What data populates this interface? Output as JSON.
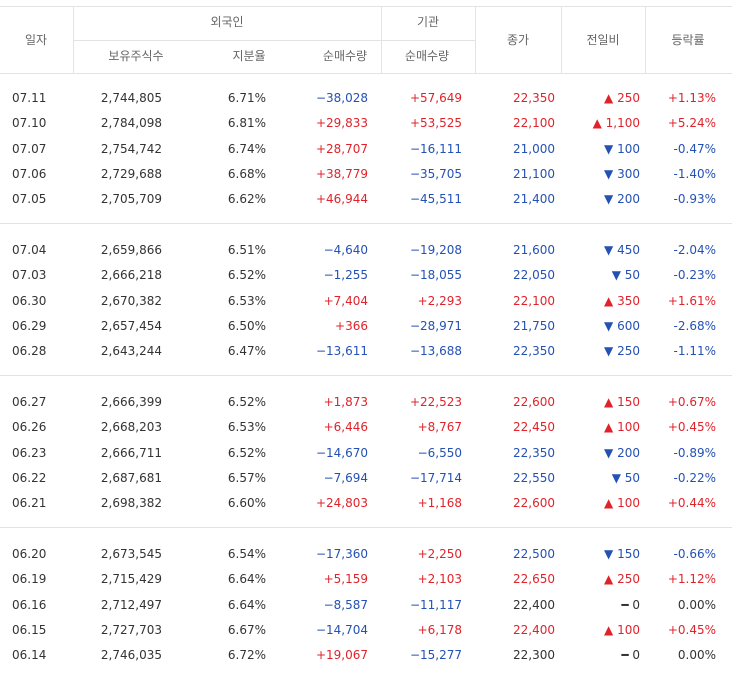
{
  "header": {
    "date": "일자",
    "foreign": "외국인",
    "institution": "기관",
    "close": "종가",
    "change": "전일비",
    "rate": "등락률",
    "holdings": "보유주식수",
    "share": "지분율",
    "foreign_net": "순매수량",
    "inst_net": "순매수량"
  },
  "groups": [
    [
      [
        "07.11",
        "2,744,805",
        "6.71%",
        "−38,028",
        "+57,649",
        "22,350",
        "▲ 250",
        "+1.13%"
      ],
      [
        "07.10",
        "2,784,098",
        "6.81%",
        "+29,833",
        "+53,525",
        "22,100",
        "▲ 1,100",
        "+5.24%"
      ],
      [
        "07.07",
        "2,754,742",
        "6.74%",
        "+28,707",
        "−16,111",
        "21,000",
        "▼ 100",
        "-0.47%"
      ],
      [
        "07.06",
        "2,729,688",
        "6.68%",
        "+38,779",
        "−35,705",
        "21,100",
        "▼ 300",
        "-1.40%"
      ],
      [
        "07.05",
        "2,705,709",
        "6.62%",
        "+46,944",
        "−45,511",
        "21,400",
        "▼ 200",
        "-0.93%"
      ]
    ],
    [
      [
        "07.04",
        "2,659,866",
        "6.51%",
        "−4,640",
        "−19,208",
        "21,600",
        "▼ 450",
        "-2.04%"
      ],
      [
        "07.03",
        "2,666,218",
        "6.52%",
        "−1,255",
        "−18,055",
        "22,050",
        "▼ 50",
        "-0.23%"
      ],
      [
        "06.30",
        "2,670,382",
        "6.53%",
        "+7,404",
        "+2,293",
        "22,100",
        "▲ 350",
        "+1.61%"
      ],
      [
        "06.29",
        "2,657,454",
        "6.50%",
        "+366",
        "−28,971",
        "21,750",
        "▼ 600",
        "-2.68%"
      ],
      [
        "06.28",
        "2,643,244",
        "6.47%",
        "−13,611",
        "−13,688",
        "22,350",
        "▼ 250",
        "-1.11%"
      ]
    ],
    [
      [
        "06.27",
        "2,666,399",
        "6.52%",
        "+1,873",
        "+22,523",
        "22,600",
        "▲ 150",
        "+0.67%"
      ],
      [
        "06.26",
        "2,668,203",
        "6.53%",
        "+6,446",
        "+8,767",
        "22,450",
        "▲ 100",
        "+0.45%"
      ],
      [
        "06.23",
        "2,666,711",
        "6.52%",
        "−14,670",
        "−6,550",
        "22,350",
        "▼ 200",
        "-0.89%"
      ],
      [
        "06.22",
        "2,687,681",
        "6.57%",
        "−7,694",
        "−17,714",
        "22,550",
        "▼ 50",
        "-0.22%"
      ],
      [
        "06.21",
        "2,698,382",
        "6.60%",
        "+24,803",
        "+1,168",
        "22,600",
        "▲ 100",
        "+0.44%"
      ]
    ],
    [
      [
        "06.20",
        "2,673,545",
        "6.54%",
        "−17,360",
        "+2,250",
        "22,500",
        "▼ 150",
        "-0.66%"
      ],
      [
        "06.19",
        "2,715,429",
        "6.64%",
        "+5,159",
        "+2,103",
        "22,650",
        "▲ 250",
        "+1.12%"
      ],
      [
        "06.16",
        "2,712,497",
        "6.64%",
        "−8,587",
        "−11,117",
        "22,400",
        "━ 0",
        "0.00%"
      ],
      [
        "06.15",
        "2,727,703",
        "6.67%",
        "−14,704",
        "+6,178",
        "22,400",
        "▲ 100",
        "+0.45%"
      ],
      [
        "06.14",
        "2,746,035",
        "6.72%",
        "+19,067",
        "−15,277",
        "22,300",
        "━ 0",
        "0.00%"
      ]
    ]
  ]
}
